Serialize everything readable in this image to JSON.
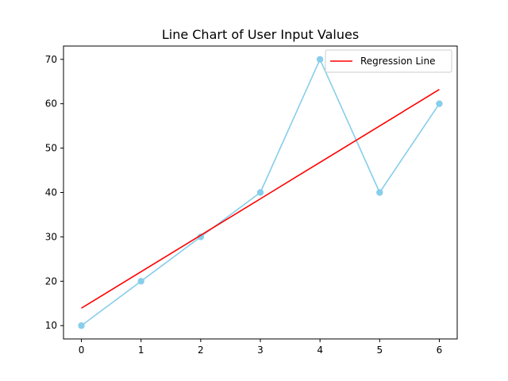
{
  "chart_data": {
    "type": "line",
    "title": "Line Chart of User Input Values",
    "xlabel": "",
    "ylabel": "",
    "x": [
      0,
      1,
      2,
      3,
      4,
      5,
      6
    ],
    "xlim": [
      -0.3,
      6.3
    ],
    "ylim": [
      7.0,
      73.0
    ],
    "xticks": [
      0,
      1,
      2,
      3,
      4,
      5,
      6
    ],
    "yticks": [
      10,
      20,
      30,
      40,
      50,
      60,
      70
    ],
    "grid": false,
    "legend_position": "top-right",
    "series": [
      {
        "values": [
          10,
          20,
          30,
          40,
          70,
          40,
          60
        ],
        "color": "#87ceeb",
        "marker": "circle"
      },
      {
        "name": "Regression Line",
        "values": [
          13.93,
          22.14,
          30.36,
          38.57,
          46.79,
          55.0,
          63.21
        ],
        "color": "#ff0000",
        "marker": "none"
      }
    ]
  }
}
